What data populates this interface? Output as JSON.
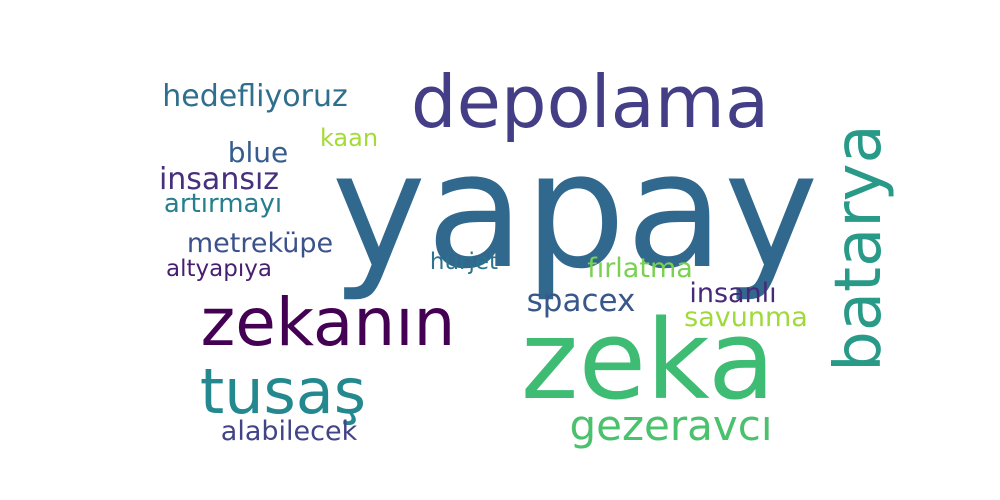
{
  "words": [
    {
      "text": "yapay",
      "color": "#31688e"
    },
    {
      "text": "zeka",
      "color": "#3fbc73"
    },
    {
      "text": "depolama",
      "color": "#433e85"
    },
    {
      "text": "zekanın",
      "color": "#440154"
    },
    {
      "text": "tusaş",
      "color": "#23898e"
    },
    {
      "text": "batarya",
      "color": "#2a9a88"
    },
    {
      "text": "gezeravcı",
      "color": "#4ac16d"
    },
    {
      "text": "hedefliyoruz",
      "color": "#2f6f8e"
    },
    {
      "text": "kaan",
      "color": "#a5db36"
    },
    {
      "text": "blue",
      "color": "#365d8d"
    },
    {
      "text": "insansız",
      "color": "#46307e"
    },
    {
      "text": "artırmayı",
      "color": "#277f8e"
    },
    {
      "text": "metreküpe",
      "color": "#3b528b"
    },
    {
      "text": "altyapıya",
      "color": "#481f70"
    },
    {
      "text": "hürjet",
      "color": "#2c728e"
    },
    {
      "text": "fırlatma",
      "color": "#7ad151"
    },
    {
      "text": "spacex",
      "color": "#38588c"
    },
    {
      "text": "insanlı",
      "color": "#482878"
    },
    {
      "text": "savunma",
      "color": "#9fda3a"
    },
    {
      "text": "alabilecek",
      "color": "#414487"
    }
  ]
}
